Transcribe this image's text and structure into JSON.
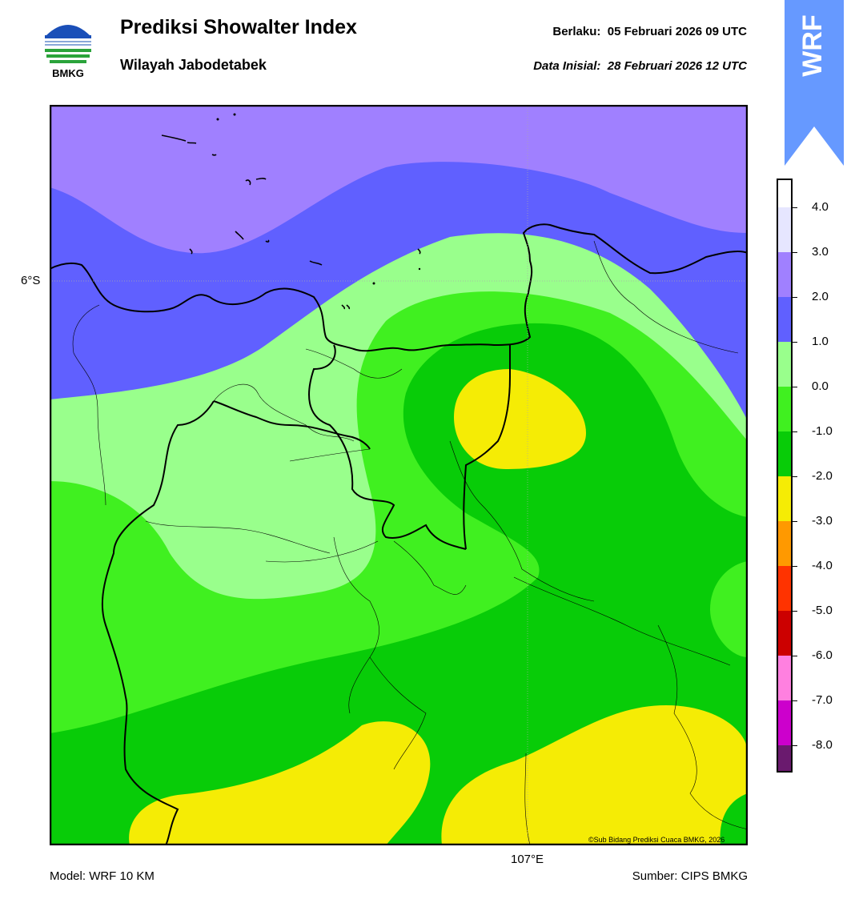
{
  "header": {
    "title": "Prediksi Showalter Index",
    "subtitle": "Wilayah Jabodetabek",
    "valid_label": "Berlaku:",
    "valid_value": "05 Februari 2026 09 UTC",
    "init_label": "Data Inisial:",
    "init_value": "28 Februari 2026 12 UTC"
  },
  "logo": {
    "text": "BMKG",
    "icon": "bmkg-logo-icon"
  },
  "banner": {
    "text": "WRF",
    "color": "#6699ff"
  },
  "map": {
    "lat_label": "6°S",
    "lon_label": "107°E",
    "copyright": "©Sub Bidang Prediksi Cuaca BMKG, 2026"
  },
  "colorbar": {
    "labels": [
      "4.0",
      "3.0",
      "2.0",
      "1.0",
      "0.0",
      "-1.0",
      "-2.0",
      "-3.0",
      "-4.0",
      "-5.0",
      "-6.0",
      "-7.0",
      "-8.0"
    ],
    "colors": [
      "#ffffff",
      "#e6e6ff",
      "#a080ff",
      "#6060ff",
      "#99ff8c",
      "#40f020",
      "#08cc08",
      "#f5ec05",
      "#ff9900",
      "#ff3300",
      "#cc0000",
      "#ff80e0",
      "#cc00cc",
      "#6a1a6e"
    ]
  },
  "footer": {
    "model": "Model: WRF 10 KM",
    "source": "Sumber: CIPS BMKG"
  }
}
